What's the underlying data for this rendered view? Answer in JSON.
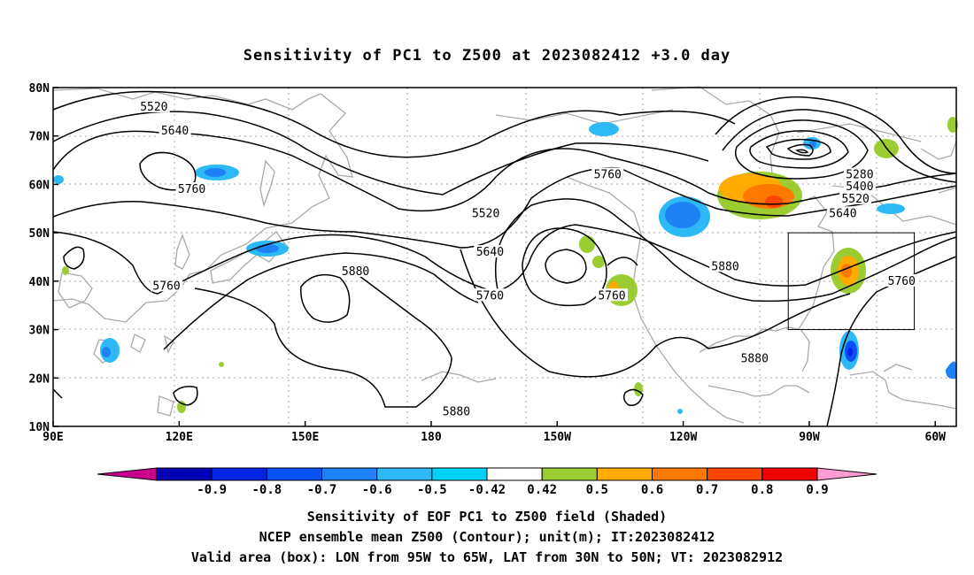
{
  "title": "Sensitivity of PC1 to Z500 at 2023082412 +3.0 day",
  "map": {
    "lon_range": [
      90,
      305
    ],
    "lat_range": [
      10,
      80
    ],
    "lat_ticks": [
      {
        "lat": 80,
        "label": "80N"
      },
      {
        "lat": 70,
        "label": "70N"
      },
      {
        "lat": 60,
        "label": "60N"
      },
      {
        "lat": 50,
        "label": "50N"
      },
      {
        "lat": 40,
        "label": "40N"
      },
      {
        "lat": 30,
        "label": "30N"
      },
      {
        "lat": 20,
        "label": "20N"
      },
      {
        "lat": 10,
        "label": "10N"
      }
    ],
    "lon_ticks": [
      {
        "lon": 90,
        "label": "90E"
      },
      {
        "lon": 120,
        "label": "120E"
      },
      {
        "lon": 150,
        "label": "150E"
      },
      {
        "lon": 180,
        "label": "180"
      },
      {
        "lon": 210,
        "label": "150W"
      },
      {
        "lon": 240,
        "label": "120W"
      },
      {
        "lon": 270,
        "label": "90W"
      },
      {
        "lon": 300,
        "label": "60W"
      }
    ],
    "valid_box": {
      "lon_min": 265,
      "lon_max": 295,
      "lat_min": 30,
      "lat_max": 50
    },
    "colors": {
      "contour": "#000000",
      "coast": "#aaaaaa",
      "grid": "#aaaaaa",
      "box": "#000000"
    }
  },
  "contour_labels": [
    {
      "text": "5520",
      "lon": 114,
      "lat": 76
    },
    {
      "text": "5640",
      "lon": 119,
      "lat": 71
    },
    {
      "text": "5760",
      "lon": 123,
      "lat": 59
    },
    {
      "text": "5760",
      "lon": 117,
      "lat": 39
    },
    {
      "text": "5880",
      "lon": 162,
      "lat": 42
    },
    {
      "text": "5880",
      "lon": 186,
      "lat": 13
    },
    {
      "text": "5520",
      "lon": 193,
      "lat": 54
    },
    {
      "text": "5640",
      "lon": 194,
      "lat": 46
    },
    {
      "text": "5760",
      "lon": 194,
      "lat": 37
    },
    {
      "text": "5760",
      "lon": 222,
      "lat": 62
    },
    {
      "text": "5760",
      "lon": 223,
      "lat": 37
    },
    {
      "text": "5880",
      "lon": 250,
      "lat": 43
    },
    {
      "text": "5880",
      "lon": 257,
      "lat": 24
    },
    {
      "text": "5280",
      "lon": 282,
      "lat": 62
    },
    {
      "text": "5400",
      "lon": 282,
      "lat": 59.5
    },
    {
      "text": "5520",
      "lon": 281,
      "lat": 57
    },
    {
      "text": "5640",
      "lon": 278,
      "lat": 54
    },
    {
      "text": "5760",
      "lon": 292,
      "lat": 40
    }
  ],
  "colorbar": {
    "ticks": [
      "-0.9",
      "-0.8",
      "-0.7",
      "-0.6",
      "-0.5",
      "-0.42",
      "0.42",
      "0.5",
      "0.6",
      "0.7",
      "0.8",
      "0.9"
    ],
    "colors": [
      "#c8008c",
      "#0000b4",
      "#0023e6",
      "#0a50f5",
      "#1e82f5",
      "#2db9f5",
      "#00d2fa",
      "#ffffff",
      "#9bcd32",
      "#ffaa00",
      "#ff7800",
      "#ff4600",
      "#f00000",
      "#ff9bd2"
    ]
  },
  "caption": [
    "Sensitivity of EOF PC1 to Z500 field (Shaded)",
    "NCEP ensemble mean Z500 (Contour); unit(m); IT:2023082412",
    "Valid area (box): LON from 95W to 65W, LAT from 30N to 50N; VT: 2023082912"
  ]
}
